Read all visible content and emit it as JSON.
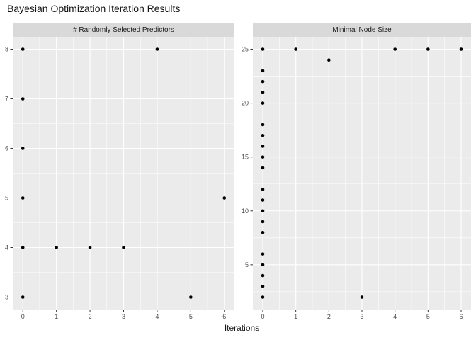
{
  "title": "Bayesian Optimization Iteration Results",
  "xlabel": "Iterations",
  "colors": {
    "background": "#FFFFFF",
    "panel_bg": "#EBEBEB",
    "strip_bg": "#D9D9D9",
    "grid_major": "#FFFFFF",
    "grid_minor": "#FFFFFF",
    "point": "#000000",
    "tick_text": "#4D4D4D",
    "tick_mark": "#333333",
    "title_text": "#141414"
  },
  "chart_data": [
    {
      "type": "scatter",
      "panel": "# Randomly Selected Predictors",
      "xlabel": "Iterations",
      "ylabel": "",
      "xlim": [
        0,
        6
      ],
      "ylim": [
        3,
        8
      ],
      "x_ticks": [
        0,
        1,
        2,
        3,
        4,
        5,
        6
      ],
      "y_ticks": [
        3,
        4,
        5,
        6,
        7,
        8
      ],
      "grid": true,
      "legend": "none",
      "points": [
        [
          0,
          8
        ],
        [
          0,
          7
        ],
        [
          0,
          6
        ],
        [
          0,
          5
        ],
        [
          0,
          4
        ],
        [
          0,
          3
        ],
        [
          1,
          4
        ],
        [
          2,
          4
        ],
        [
          3,
          4
        ],
        [
          4,
          8
        ],
        [
          5,
          3
        ],
        [
          6,
          5
        ]
      ]
    },
    {
      "type": "scatter",
      "panel": "Minimal Node Size",
      "xlabel": "Iterations",
      "ylabel": "",
      "xlim": [
        0,
        6
      ],
      "ylim": [
        2,
        25
      ],
      "x_ticks": [
        0,
        1,
        2,
        3,
        4,
        5,
        6
      ],
      "y_ticks": [
        5,
        10,
        15,
        20,
        25
      ],
      "grid": true,
      "legend": "none",
      "points": [
        [
          0,
          25
        ],
        [
          0,
          23
        ],
        [
          0,
          22
        ],
        [
          0,
          21
        ],
        [
          0,
          20
        ],
        [
          0,
          18
        ],
        [
          0,
          17
        ],
        [
          0,
          16
        ],
        [
          0,
          15
        ],
        [
          0,
          14
        ],
        [
          0,
          12
        ],
        [
          0,
          11
        ],
        [
          0,
          10
        ],
        [
          0,
          9
        ],
        [
          0,
          8
        ],
        [
          0,
          6
        ],
        [
          0,
          5
        ],
        [
          0,
          4
        ],
        [
          0,
          3
        ],
        [
          0,
          2
        ],
        [
          1,
          25
        ],
        [
          2,
          24
        ],
        [
          3,
          2
        ],
        [
          4,
          25
        ],
        [
          5,
          25
        ],
        [
          6,
          25
        ]
      ]
    }
  ]
}
